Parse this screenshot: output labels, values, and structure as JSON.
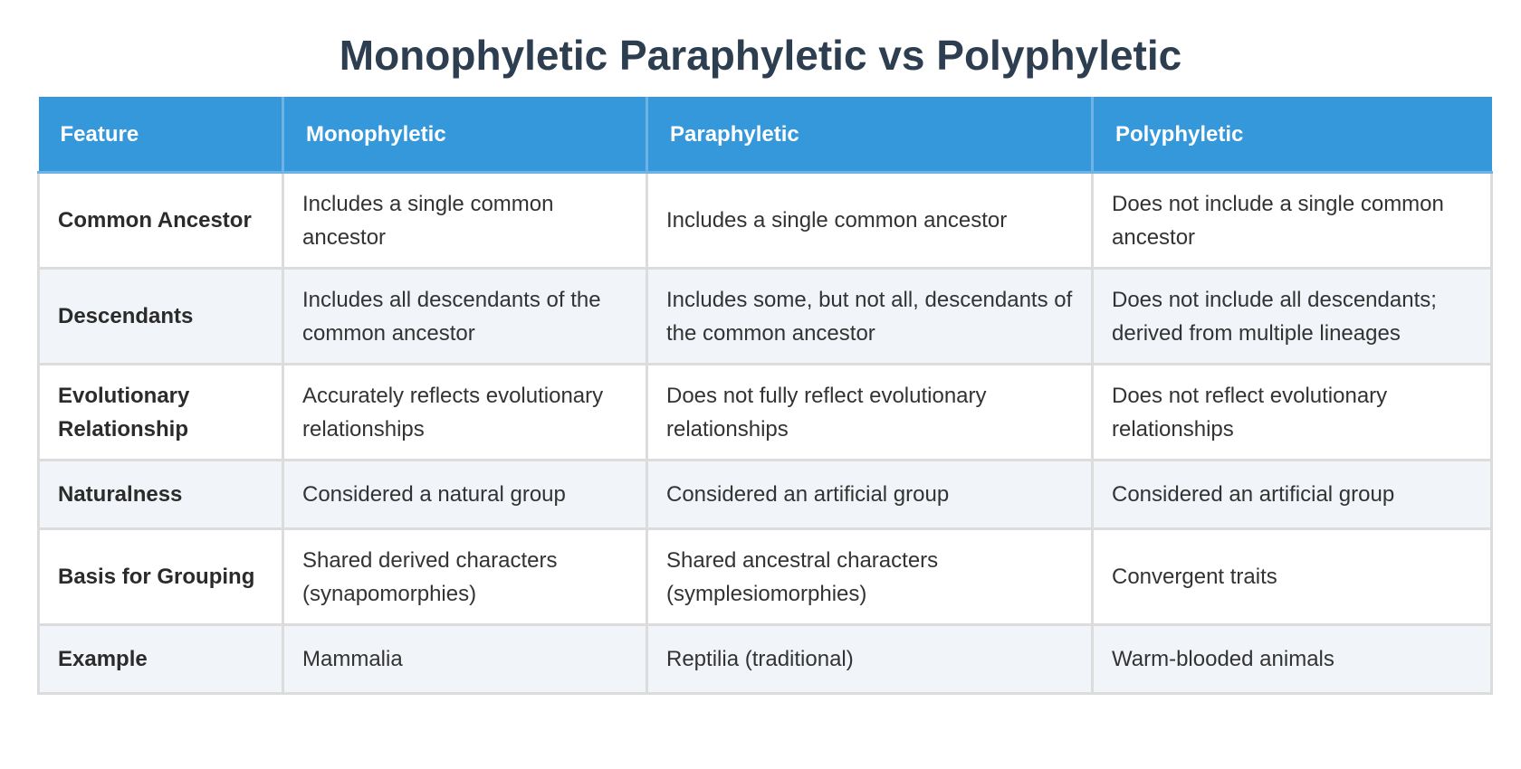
{
  "title": "Monophyletic Paraphyletic vs Polyphyletic",
  "header": {
    "feature": "Feature",
    "monophyletic": "Monophyletic",
    "paraphyletic": "Paraphyletic",
    "polyphyletic": "Polyphyletic"
  },
  "rows": [
    {
      "feature": "Common Ancestor",
      "monophyletic": "Includes a single common ancestor",
      "paraphyletic": "Includes a single common ancestor",
      "polyphyletic": "Does not include a single common ancestor"
    },
    {
      "feature": "Descendants",
      "monophyletic": "Includes all descendants of the common ancestor",
      "paraphyletic": "Includes some, but not all, descendants of the common ancestor",
      "polyphyletic": "Does not include all descendants; derived from multiple lineages"
    },
    {
      "feature": "Evolutionary Relationship",
      "monophyletic": "Accurately reflects evolutionary relationships",
      "paraphyletic": "Does not fully reflect evolutionary relationships",
      "polyphyletic": "Does not reflect evolutionary relationships"
    },
    {
      "feature": "Naturalness",
      "monophyletic": "Considered a natural group",
      "paraphyletic": "Considered an artificial group",
      "polyphyletic": "Considered an artificial group"
    },
    {
      "feature": "Basis for Grouping",
      "monophyletic": "Shared derived characters (synapomorphies)",
      "paraphyletic": "Shared ancestral characters (symplesiomorphies)",
      "polyphyletic": "Convergent traits"
    },
    {
      "feature": "Example",
      "monophyletic": "Mammalia",
      "paraphyletic": "Reptilia (traditional)",
      "polyphyletic": "Warm-blooded animals"
    }
  ],
  "colors": {
    "header_bg": "#3498db",
    "title": "#2c3e50",
    "stripe": "#f1f4f9"
  }
}
